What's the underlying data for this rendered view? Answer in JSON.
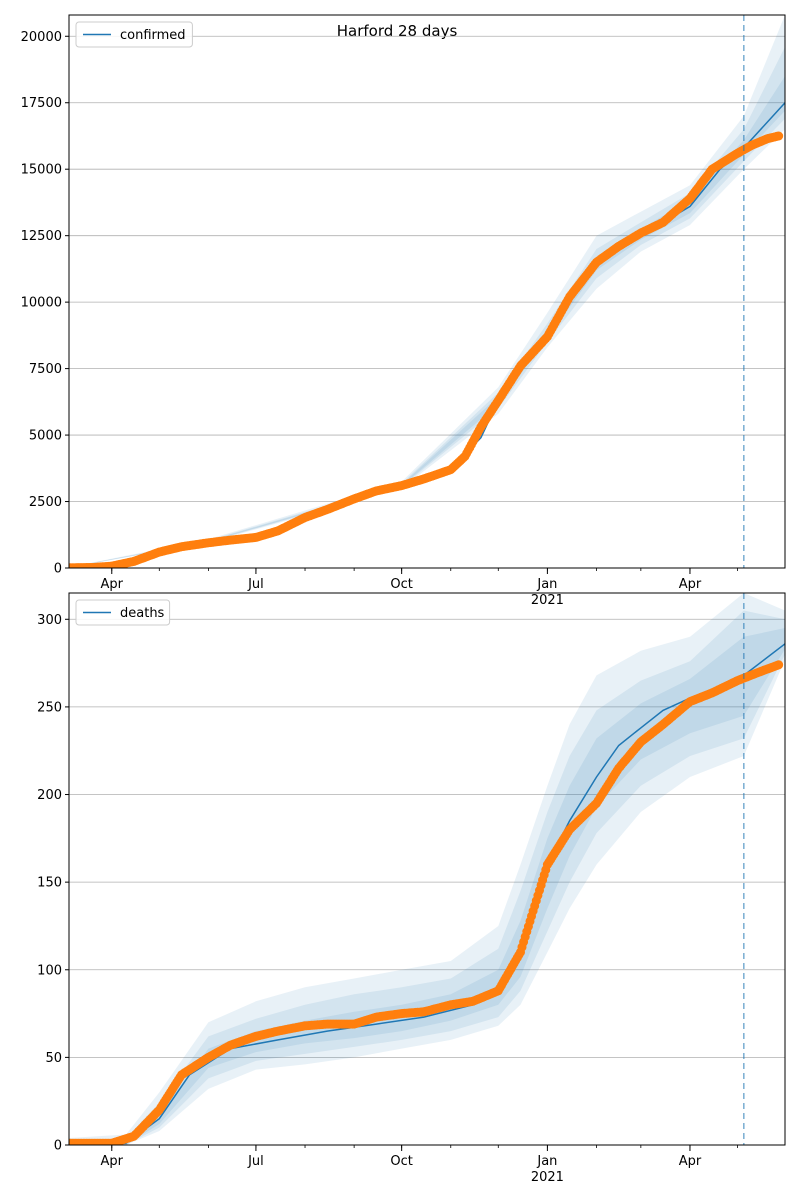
{
  "title": "Harford 28 days",
  "chart_data": [
    {
      "type": "line",
      "legend": "confirmed",
      "legend_placement": "top-left",
      "grid": "y",
      "ylim": [
        0,
        20800
      ],
      "yticks": [
        0,
        2500,
        5000,
        7500,
        10000,
        12500,
        15000,
        17500,
        20000
      ],
      "ytick_labels": [
        "0",
        "2500",
        "5000",
        "7500",
        "10000",
        "12500",
        "15000",
        "17500",
        "20000"
      ],
      "xlim": [
        "2020-03-05",
        "2021-05-31"
      ],
      "xticks": [
        {
          "date": "2020-04-01",
          "label": "Apr",
          "sublabel": ""
        },
        {
          "date": "2020-07-01",
          "label": "Jul",
          "sublabel": ""
        },
        {
          "date": "2020-10-01",
          "label": "Oct",
          "sublabel": ""
        },
        {
          "date": "2021-01-01",
          "label": "Jan",
          "sublabel": "2021"
        },
        {
          "date": "2021-04-01",
          "label": "Apr",
          "sublabel": ""
        }
      ],
      "forecast_start": "2021-05-05",
      "colors": {
        "model": "#1f77b4",
        "observed": "#ff7f0e",
        "band": "#1f77b4"
      },
      "model_line": {
        "x": [
          "2020-03-05",
          "2020-04-01",
          "2020-05-01",
          "2020-06-01",
          "2020-07-01",
          "2020-08-01",
          "2020-09-01",
          "2020-10-01",
          "2020-11-01",
          "2020-11-20",
          "2020-12-01",
          "2021-01-01",
          "2021-02-01",
          "2021-03-01",
          "2021-04-01",
          "2021-04-20",
          "2021-05-05",
          "2021-05-31"
        ],
        "y": [
          20,
          80,
          550,
          1000,
          1200,
          1900,
          2600,
          3100,
          3700,
          4900,
          6300,
          8800,
          11500,
          12500,
          13600,
          15000,
          15800,
          17500
        ]
      },
      "bands": [
        {
          "level": "outer",
          "x": [
            "2020-03-05",
            "2020-06-01",
            "2020-10-01",
            "2020-12-01",
            "2021-01-01",
            "2021-02-01",
            "2021-03-01",
            "2021-04-01",
            "2021-05-05",
            "2021-05-31"
          ],
          "lower": [
            15,
            950,
            3000,
            5800,
            8300,
            10500,
            11900,
            12900,
            15000,
            16500
          ],
          "upper": [
            30,
            1080,
            3250,
            6800,
            9600,
            12500,
            13400,
            14400,
            17000,
            20800
          ]
        },
        {
          "level": "middle",
          "x": [
            "2020-03-05",
            "2020-06-01",
            "2020-10-01",
            "2020-12-01",
            "2021-01-01",
            "2021-02-01",
            "2021-03-01",
            "2021-04-01",
            "2021-05-05",
            "2021-05-31"
          ],
          "lower": [
            17,
            975,
            3050,
            6000,
            8500,
            10900,
            12150,
            13150,
            15300,
            16900
          ],
          "upper": [
            26,
            1040,
            3180,
            6600,
            9200,
            12000,
            13000,
            14100,
            16500,
            19600
          ]
        },
        {
          "level": "inner",
          "x": [
            "2020-03-05",
            "2020-06-01",
            "2020-10-01",
            "2020-12-01",
            "2021-01-01",
            "2021-02-01",
            "2021-03-01",
            "2021-04-01",
            "2021-05-05",
            "2021-05-31"
          ],
          "lower": [
            18,
            990,
            3080,
            6150,
            8650,
            11200,
            12350,
            13350,
            15550,
            17200
          ],
          "upper": [
            23,
            1020,
            3140,
            6450,
            9000,
            11700,
            12750,
            13850,
            16100,
            18500
          ]
        }
      ],
      "observed": {
        "x": [
          "2020-03-05",
          "2020-03-20",
          "2020-04-01",
          "2020-04-15",
          "2020-05-01",
          "2020-05-15",
          "2020-06-01",
          "2020-06-15",
          "2020-07-01",
          "2020-07-15",
          "2020-08-01",
          "2020-08-15",
          "2020-09-01",
          "2020-09-15",
          "2020-10-01",
          "2020-10-15",
          "2020-11-01",
          "2020-11-10",
          "2020-11-20",
          "2020-12-01",
          "2020-12-15",
          "2021-01-01",
          "2021-01-15",
          "2021-02-01",
          "2021-02-15",
          "2021-03-01",
          "2021-03-15",
          "2021-04-01",
          "2021-04-15",
          "2021-05-01",
          "2021-05-10",
          "2021-05-20",
          "2021-05-27"
        ],
        "y": [
          10,
          20,
          70,
          250,
          600,
          800,
          950,
          1050,
          1150,
          1400,
          1900,
          2200,
          2600,
          2900,
          3100,
          3350,
          3700,
          4200,
          5300,
          6300,
          7600,
          8700,
          10200,
          11500,
          12100,
          12600,
          13000,
          13900,
          15000,
          15600,
          15900,
          16150,
          16250
        ]
      }
    },
    {
      "type": "line",
      "legend": "deaths",
      "legend_placement": "top-left",
      "grid": "y",
      "ylim": [
        0,
        315
      ],
      "yticks": [
        0,
        50,
        100,
        150,
        200,
        250,
        300
      ],
      "ytick_labels": [
        "0",
        "50",
        "100",
        "150",
        "200",
        "250",
        "300"
      ],
      "xlim": [
        "2020-03-05",
        "2021-05-31"
      ],
      "xticks": [
        {
          "date": "2020-04-01",
          "label": "Apr",
          "sublabel": ""
        },
        {
          "date": "2020-07-01",
          "label": "Jul",
          "sublabel": ""
        },
        {
          "date": "2020-10-01",
          "label": "Oct",
          "sublabel": ""
        },
        {
          "date": "2021-01-01",
          "label": "Jan",
          "sublabel": "2021"
        },
        {
          "date": "2021-04-01",
          "label": "Apr",
          "sublabel": ""
        }
      ],
      "forecast_start": "2021-05-05",
      "colors": {
        "model": "#1f77b4",
        "observed": "#ff7f0e",
        "band": "#1f77b4"
      },
      "model_line": {
        "x": [
          "2020-03-05",
          "2020-04-10",
          "2020-05-01",
          "2020-05-20",
          "2020-06-15",
          "2020-07-15",
          "2020-08-15",
          "2020-09-15",
          "2020-10-15",
          "2020-11-15",
          "2020-12-01",
          "2020-12-15",
          "2021-01-01",
          "2021-01-15",
          "2021-02-01",
          "2021-02-15",
          "2021-03-01",
          "2021-03-15",
          "2021-04-01",
          "2021-04-15",
          "2021-05-05",
          "2021-05-31"
        ],
        "y": [
          0,
          1,
          15,
          40,
          55,
          60,
          65,
          69,
          73,
          80,
          90,
          110,
          160,
          185,
          210,
          228,
          238,
          248,
          255,
          258,
          268,
          286
        ]
      },
      "bands": [
        {
          "level": "outer",
          "x": [
            "2020-03-05",
            "2020-04-10",
            "2020-05-01",
            "2020-06-01",
            "2020-07-01",
            "2020-08-01",
            "2020-09-01",
            "2020-10-01",
            "2020-11-01",
            "2020-12-01",
            "2020-12-15",
            "2021-01-01",
            "2021-01-15",
            "2021-02-01",
            "2021-03-01",
            "2021-04-01",
            "2021-05-05",
            "2021-05-31"
          ],
          "lower": [
            0,
            0,
            8,
            32,
            43,
            46,
            50,
            55,
            60,
            68,
            80,
            110,
            135,
            160,
            190,
            210,
            222,
            277
          ],
          "upper": [
            4,
            6,
            30,
            70,
            82,
            90,
            95,
            100,
            105,
            125,
            160,
            205,
            240,
            268,
            282,
            290,
            315,
            305
          ]
        },
        {
          "level": "middle",
          "x": [
            "2020-03-05",
            "2020-04-10",
            "2020-05-01",
            "2020-06-01",
            "2020-07-01",
            "2020-08-01",
            "2020-09-01",
            "2020-10-01",
            "2020-11-01",
            "2020-12-01",
            "2020-12-15",
            "2021-01-01",
            "2021-01-15",
            "2021-02-01",
            "2021-03-01",
            "2021-04-01",
            "2021-05-05",
            "2021-05-31"
          ],
          "lower": [
            0,
            0,
            10,
            38,
            48,
            52,
            56,
            60,
            65,
            73,
            88,
            122,
            150,
            178,
            205,
            222,
            232,
            280
          ],
          "upper": [
            2,
            4,
            24,
            62,
            72,
            80,
            86,
            90,
            95,
            112,
            145,
            190,
            222,
            248,
            265,
            276,
            305,
            300
          ]
        },
        {
          "level": "inner",
          "x": [
            "2020-03-05",
            "2020-04-10",
            "2020-05-01",
            "2020-06-01",
            "2020-07-01",
            "2020-08-01",
            "2020-09-01",
            "2020-10-01",
            "2020-11-01",
            "2020-12-01",
            "2020-12-15",
            "2021-01-01",
            "2021-01-15",
            "2021-02-01",
            "2021-03-01",
            "2021-04-01",
            "2021-05-05",
            "2021-05-31"
          ],
          "lower": [
            0,
            0,
            12,
            44,
            53,
            58,
            61,
            65,
            71,
            80,
            96,
            135,
            165,
            193,
            220,
            235,
            245,
            283
          ],
          "upper": [
            1,
            2,
            18,
            55,
            65,
            71,
            76,
            80,
            86,
            100,
            128,
            175,
            205,
            232,
            252,
            266,
            290,
            295
          ]
        }
      ],
      "observed": {
        "x": [
          "2020-03-05",
          "2020-04-01",
          "2020-04-15",
          "2020-05-01",
          "2020-05-15",
          "2020-06-01",
          "2020-06-15",
          "2020-07-01",
          "2020-07-15",
          "2020-08-01",
          "2020-08-15",
          "2020-09-01",
          "2020-09-15",
          "2020-10-01",
          "2020-10-15",
          "2020-11-01",
          "2020-11-15",
          "2020-12-01",
          "2020-12-15",
          "2021-01-01",
          "2021-01-15",
          "2021-02-01",
          "2021-02-15",
          "2021-03-01",
          "2021-03-15",
          "2021-04-01",
          "2021-04-15",
          "2021-05-01",
          "2021-05-15",
          "2021-05-27"
        ],
        "y": [
          1,
          1,
          5,
          20,
          40,
          50,
          57,
          62,
          65,
          68,
          69,
          69,
          73,
          75,
          76,
          80,
          82,
          88,
          110,
          160,
          180,
          195,
          215,
          230,
          240,
          253,
          258,
          265,
          270,
          274
        ]
      }
    }
  ]
}
